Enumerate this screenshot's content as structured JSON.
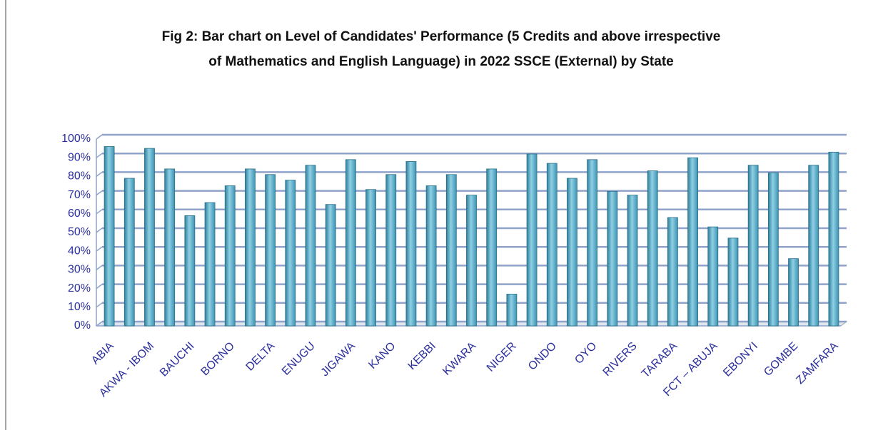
{
  "chart_data": {
    "type": "bar",
    "title": [
      "Fig 2: Bar chart on Level of Candidates' Performance (5 Credits and above irrespective",
      "of  Mathematics and English Language) in 2022 SSCE (External) by State"
    ],
    "categories": [
      "ABIA",
      null,
      "AKWA - IBOM",
      null,
      "BAUCHI",
      null,
      "BORNO",
      null,
      "DELTA",
      null,
      "ENUGU",
      null,
      "JIGAWA",
      null,
      "KANO",
      null,
      "KEBBI",
      null,
      "KWARA",
      null,
      "NIGER",
      null,
      "ONDO",
      null,
      "OYO",
      null,
      "RIVERS",
      null,
      "TARABA",
      null,
      "FCT – ABUJA",
      null,
      "EBONYI",
      null,
      "GOMBE",
      null,
      "ZAMFARA"
    ],
    "values": [
      96,
      79,
      95,
      84,
      59,
      66,
      75,
      84,
      81,
      78,
      86,
      65,
      89,
      73,
      81,
      88,
      75,
      81,
      70,
      84,
      17,
      92,
      87,
      79,
      89,
      72,
      70,
      83,
      58,
      90,
      53,
      47,
      86,
      82,
      36,
      86,
      93
    ],
    "color": "#4aa6c4",
    "ylim": [
      0,
      100
    ],
    "yticks": [
      {
        "value": 0,
        "label": "0%"
      },
      {
        "value": 10,
        "label": "10%"
      },
      {
        "value": 20,
        "label": "20%"
      },
      {
        "value": 30,
        "label": "30%"
      },
      {
        "value": 40,
        "label": "40%"
      },
      {
        "value": 50,
        "label": "50%"
      },
      {
        "value": 60,
        "label": "60%"
      },
      {
        "value": 70,
        "label": "70%"
      },
      {
        "value": 80,
        "label": "80%"
      },
      {
        "value": 90,
        "label": "90%"
      },
      {
        "value": 100,
        "label": "100%"
      }
    ],
    "grid": true
  }
}
